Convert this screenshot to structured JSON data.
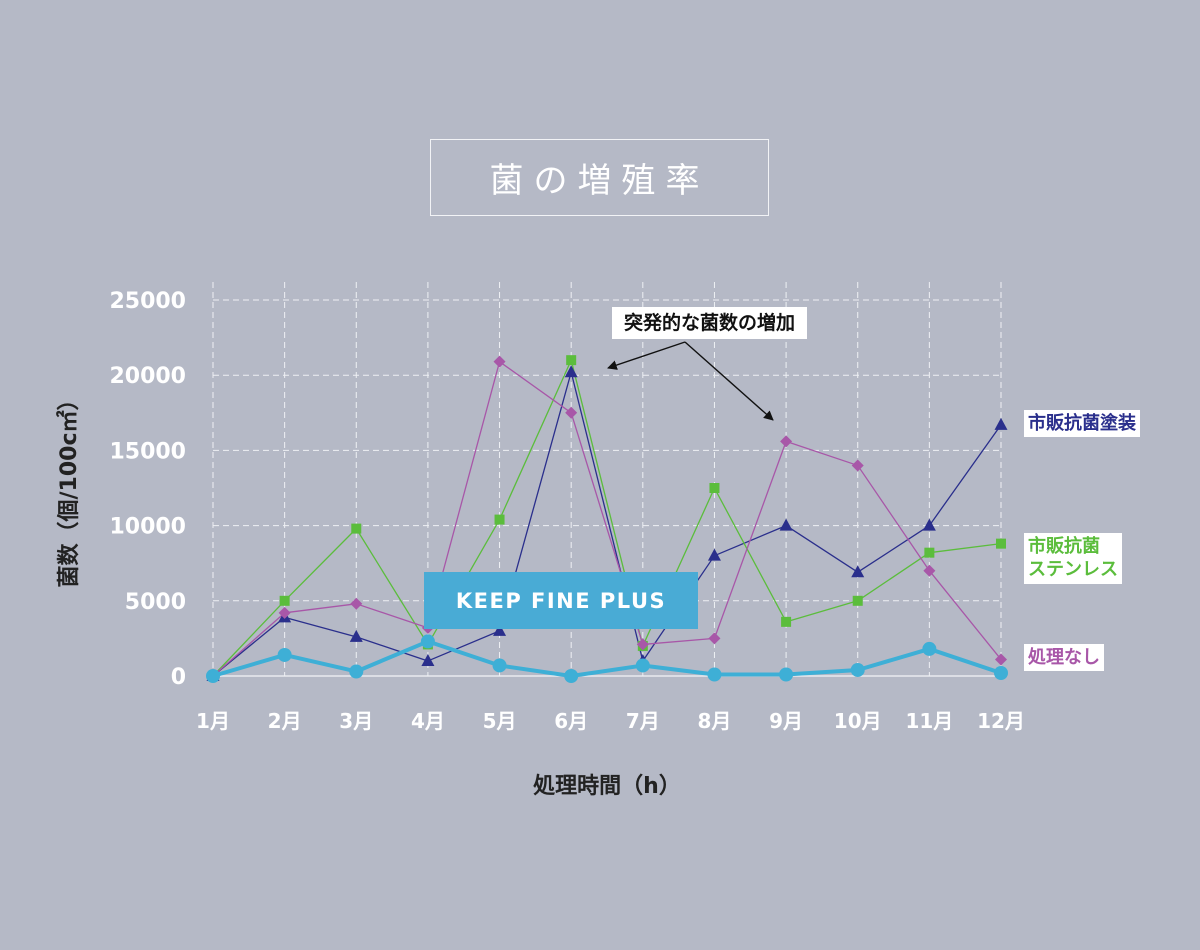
{
  "chart_data": {
    "type": "line",
    "title": "菌の増殖率",
    "xlabel": "処理時間（h）",
    "ylabel": "菌数（個/100c㎡）",
    "categories": [
      "1月",
      "2月",
      "3月",
      "4月",
      "5月",
      "6月",
      "7月",
      "8月",
      "9月",
      "10月",
      "11月",
      "12月"
    ],
    "ylim": [
      0,
      25000
    ],
    "yticks": [
      "0",
      "5000",
      "10000",
      "15000",
      "20000",
      "25000"
    ],
    "grid": true,
    "series": [
      {
        "name": "市販抗菌塗装",
        "color": "#2a2f8c",
        "marker": "triangle",
        "values": [
          0,
          3900,
          2600,
          1000,
          3000,
          20200,
          1000,
          8000,
          10000,
          6900,
          10000,
          16700
        ]
      },
      {
        "name": "市販抗菌 ステンレス",
        "label_lines": [
          "市販抗菌",
          "ステンレス"
        ],
        "color": "#5bbd3c",
        "marker": "square",
        "values": [
          0,
          5000,
          9800,
          2100,
          10400,
          21000,
          2000,
          12500,
          3600,
          5000,
          8200,
          8800
        ]
      },
      {
        "name": "処理なし",
        "color": "#a857a8",
        "marker": "diamond",
        "values": [
          0,
          4200,
          4800,
          3200,
          20900,
          17500,
          2100,
          2500,
          15600,
          14000,
          7000,
          1100
        ]
      },
      {
        "name": "KEEP FINE PLUS",
        "color": "#3eafd6",
        "marker": "circle",
        "values": [
          0,
          1400,
          300,
          2300,
          700,
          0,
          700,
          100,
          100,
          400,
          1800,
          200
        ]
      }
    ],
    "annotation": "突発的な菌数の増加"
  }
}
